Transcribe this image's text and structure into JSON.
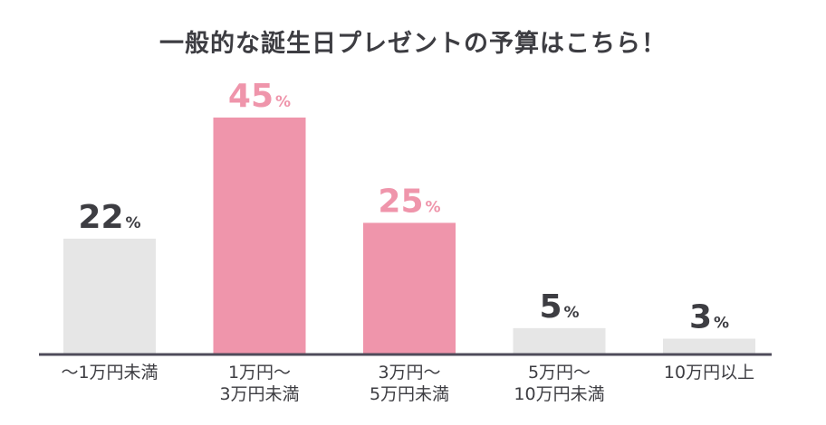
{
  "chart_data": {
    "type": "bar",
    "title": "一般的な誕生日プレゼントの予算はこちら！",
    "xlabel": "",
    "ylabel": "",
    "ylim": [
      0,
      50
    ],
    "grid": false,
    "legend": "none",
    "categories": [
      [
        "〜1万円未満"
      ],
      [
        "1万円〜",
        "3万円未満"
      ],
      [
        "3万円〜",
        "5万円未満"
      ],
      [
        "5万円〜",
        "10万円未満"
      ],
      [
        "10万円以上"
      ]
    ],
    "values": [
      22,
      45,
      25,
      5,
      3
    ],
    "unit": "%",
    "highlighted": [
      false,
      true,
      true,
      false,
      false
    ],
    "colors": {
      "bar_default": "#e6e6e6",
      "bar_highlight": "#ef95ab",
      "label_default": "#3d3d42",
      "label_highlight": "#ef95ab",
      "axis": "#4e4b5a"
    }
  }
}
